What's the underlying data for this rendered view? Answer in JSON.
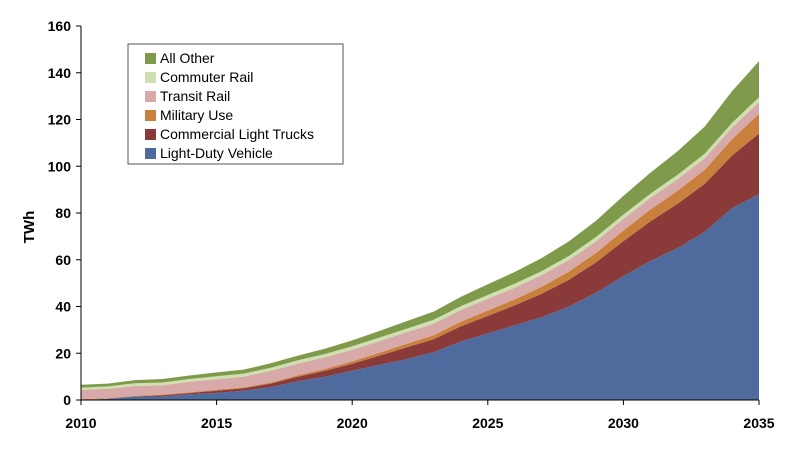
{
  "chart_data": {
    "type": "area",
    "stacked": true,
    "title": "",
    "xlabel": "",
    "ylabel": "TWh",
    "xlim": [
      2010,
      2035
    ],
    "ylim": [
      0,
      160
    ],
    "x_ticks": [
      2010,
      2015,
      2020,
      2025,
      2030,
      2035
    ],
    "y_ticks": [
      0,
      20,
      40,
      60,
      80,
      100,
      120,
      140,
      160
    ],
    "grid": false,
    "legend_position": "top-left",
    "x": [
      2010,
      2011,
      2012,
      2013,
      2014,
      2015,
      2016,
      2017,
      2018,
      2019,
      2020,
      2021,
      2022,
      2023,
      2024,
      2025,
      2026,
      2027,
      2028,
      2029,
      2030,
      2031,
      2032,
      2033,
      2034,
      2035
    ],
    "series": [
      {
        "name": "Light-Duty Vehicle",
        "color": "#4f6a9c",
        "values": [
          0,
          0.5,
          1.5,
          1.5,
          2.5,
          3,
          4,
          5.5,
          8,
          10,
          12.5,
          15,
          17.5,
          20.5,
          25,
          28.5,
          32,
          35.5,
          40,
          46,
          53,
          59.5,
          65,
          72,
          82,
          88
        ]
      },
      {
        "name": "Commercial Light Trucks",
        "color": "#8b3a3a",
        "values": [
          0,
          0,
          0,
          0.5,
          0.5,
          1,
          1,
          1.5,
          2,
          2.5,
          3,
          4,
          5,
          5.5,
          6.5,
          7.5,
          8.5,
          10,
          11.5,
          13,
          15,
          17,
          19,
          20.5,
          22.5,
          26
        ]
      },
      {
        "name": "Military Use",
        "color": "#c8803c",
        "values": [
          0.3,
          0.3,
          0.3,
          0.3,
          0.3,
          0.4,
          0.4,
          0.5,
          0.6,
          0.8,
          1,
          1.2,
          1.5,
          1.7,
          2,
          2.3,
          2.6,
          3,
          3.5,
          4,
          4.5,
          5,
          5.5,
          6,
          7,
          8.5
        ]
      },
      {
        "name": "Transit Rail",
        "color": "#d8a9a9",
        "values": [
          4,
          4,
          4.2,
          4,
          4.5,
          4.5,
          4.6,
          5,
          5,
          5,
          5,
          5,
          5,
          5,
          5,
          5,
          5,
          5,
          5,
          5,
          5,
          5,
          5,
          5,
          5,
          5
        ]
      },
      {
        "name": "Commuter Rail",
        "color": "#cfe0b0",
        "values": [
          1,
          1,
          1.2,
          1.2,
          1.2,
          1.3,
          1.3,
          1.3,
          1.4,
          1.4,
          1.5,
          1.5,
          1.5,
          1.6,
          1.6,
          1.6,
          1.7,
          1.7,
          1.7,
          1.8,
          1.8,
          1.8,
          1.9,
          1.9,
          2,
          2
        ]
      },
      {
        "name": "All Other",
        "color": "#7f9a4a",
        "values": [
          1.2,
          1.2,
          1.3,
          1.5,
          1.5,
          1.6,
          1.7,
          1.9,
          2,
          2.3,
          2.5,
          2.8,
          3.2,
          3.5,
          4,
          4.6,
          5,
          5.6,
          6.3,
          7,
          8,
          9,
          10,
          11.6,
          13.5,
          15.5
        ]
      }
    ]
  }
}
